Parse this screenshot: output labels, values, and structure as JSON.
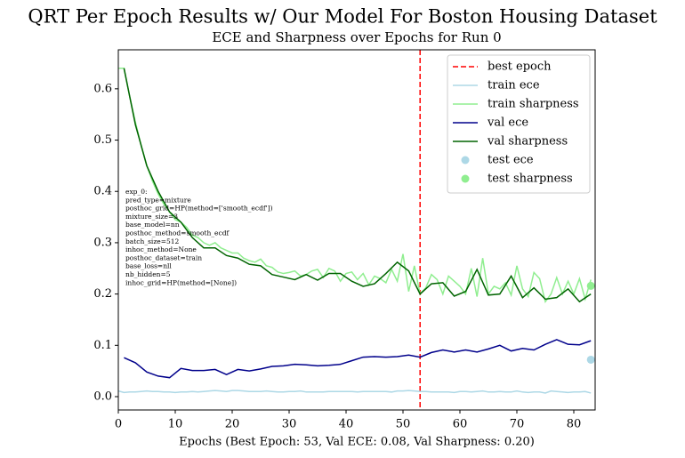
{
  "chart_data": {
    "type": "line",
    "suptitle": "QRT Per Epoch Results w/ Our Model For Boston Housing Dataset",
    "title": "ECE and Sharpness over Epochs for Run 0",
    "xlabel": "Epochs (Best Epoch: 53, Val ECE: 0.08, Val Sharpness: 0.20)",
    "xlim": [
      0,
      83.75
    ],
    "ylim": [
      -0.026,
      0.676
    ],
    "xticks": [
      0,
      10,
      20,
      30,
      40,
      50,
      60,
      70,
      80
    ],
    "yticks": [
      {
        "value": 0,
        "label": "0.0"
      },
      0.1,
      0.2,
      0.3,
      0.4,
      0.5,
      0.6
    ],
    "legend": "upper right",
    "vline": {
      "name": "best epoch",
      "color": "#ff0000",
      "x": 53
    },
    "series": [
      {
        "name": "train ece",
        "color": "#add8e6",
        "kind": "line",
        "x": [
          0,
          1,
          2,
          3,
          4,
          5,
          6,
          7,
          8,
          9,
          10,
          11,
          12,
          13,
          14,
          15,
          16,
          17,
          18,
          19,
          20,
          21,
          22,
          23,
          24,
          25,
          26,
          27,
          28,
          29,
          30,
          31,
          32,
          33,
          34,
          35,
          36,
          37,
          38,
          39,
          40,
          41,
          42,
          43,
          44,
          45,
          46,
          47,
          48,
          49,
          50,
          51,
          52,
          53,
          54,
          55,
          56,
          57,
          58,
          59,
          60,
          61,
          62,
          63,
          64,
          65,
          66,
          67,
          68,
          69,
          70,
          71,
          72,
          73,
          74,
          75,
          76,
          77,
          78,
          79,
          80,
          81,
          82,
          83
        ],
        "values": [
          0.011,
          0.008,
          0.009,
          0.009,
          0.01,
          0.011,
          0.01,
          0.01,
          0.009,
          0.009,
          0.008,
          0.009,
          0.009,
          0.01,
          0.009,
          0.01,
          0.011,
          0.012,
          0.011,
          0.01,
          0.012,
          0.012,
          0.011,
          0.01,
          0.01,
          0.01,
          0.011,
          0.01,
          0.009,
          0.009,
          0.01,
          0.01,
          0.011,
          0.009,
          0.009,
          0.009,
          0.009,
          0.01,
          0.01,
          0.01,
          0.01,
          0.01,
          0.009,
          0.01,
          0.01,
          0.01,
          0.01,
          0.01,
          0.009,
          0.011,
          0.011,
          0.012,
          0.011,
          0.01,
          0.01,
          0.009,
          0.009,
          0.009,
          0.009,
          0.008,
          0.01,
          0.01,
          0.009,
          0.01,
          0.011,
          0.009,
          0.009,
          0.01,
          0.009,
          0.009,
          0.011,
          0.009,
          0.008,
          0.009,
          0.009,
          0.007,
          0.011,
          0.01,
          0.009,
          0.008,
          0.009,
          0.009,
          0.01,
          0.007
        ]
      },
      {
        "name": "train sharpness",
        "color": "#90ee90",
        "kind": "line",
        "x": [
          0,
          1,
          2,
          3,
          4,
          5,
          6,
          7,
          8,
          9,
          10,
          11,
          12,
          13,
          14,
          15,
          16,
          17,
          18,
          19,
          20,
          21,
          22,
          23,
          24,
          25,
          26,
          27,
          28,
          29,
          30,
          31,
          32,
          33,
          34,
          35,
          36,
          37,
          38,
          39,
          40,
          41,
          42,
          43,
          44,
          45,
          46,
          47,
          48,
          49,
          50,
          51,
          52,
          53,
          54,
          55,
          56,
          57,
          58,
          59,
          60,
          61,
          62,
          63,
          64,
          65,
          66,
          67,
          68,
          69,
          70,
          71,
          72,
          73,
          74,
          75,
          76,
          77,
          78,
          79,
          80,
          81,
          82,
          83
        ],
        "values": [
          0.64,
          0.64,
          0.585,
          0.535,
          0.49,
          0.45,
          0.42,
          0.395,
          0.375,
          0.36,
          0.345,
          0.34,
          0.33,
          0.315,
          0.31,
          0.3,
          0.295,
          0.3,
          0.29,
          0.285,
          0.28,
          0.28,
          0.27,
          0.265,
          0.262,
          0.268,
          0.255,
          0.252,
          0.243,
          0.24,
          0.242,
          0.245,
          0.235,
          0.238,
          0.245,
          0.248,
          0.232,
          0.25,
          0.245,
          0.225,
          0.24,
          0.243,
          0.228,
          0.24,
          0.218,
          0.235,
          0.23,
          0.222,
          0.248,
          0.225,
          0.278,
          0.205,
          0.255,
          0.2,
          0.212,
          0.238,
          0.228,
          0.2,
          0.235,
          0.225,
          0.215,
          0.2,
          0.25,
          0.195,
          0.27,
          0.2,
          0.215,
          0.21,
          0.222,
          0.198,
          0.255,
          0.21,
          0.195,
          0.242,
          0.23,
          0.185,
          0.2,
          0.232,
          0.2,
          0.225,
          0.2,
          0.23,
          0.19,
          0.228
        ]
      },
      {
        "name": "val ece",
        "color": "#00008b",
        "kind": "line",
        "x": [
          1,
          3,
          5,
          7,
          9,
          11,
          13,
          15,
          17,
          19,
          21,
          23,
          25,
          27,
          29,
          31,
          33,
          35,
          37,
          39,
          41,
          43,
          45,
          47,
          49,
          51,
          53,
          55,
          57,
          59,
          61,
          63,
          65,
          67,
          69,
          71,
          73,
          75,
          77,
          79,
          81,
          83
        ],
        "values": [
          0.076,
          0.066,
          0.048,
          0.04,
          0.037,
          0.055,
          0.051,
          0.051,
          0.053,
          0.043,
          0.053,
          0.05,
          0.054,
          0.059,
          0.06,
          0.063,
          0.062,
          0.06,
          0.061,
          0.063,
          0.07,
          0.077,
          0.078,
          0.077,
          0.078,
          0.081,
          0.077,
          0.086,
          0.091,
          0.087,
          0.091,
          0.087,
          0.093,
          0.1,
          0.089,
          0.094,
          0.091,
          0.102,
          0.111,
          0.102,
          0.101,
          0.109
        ]
      },
      {
        "name": "val sharpness",
        "color": "#006400",
        "kind": "line",
        "x": [
          1,
          3,
          5,
          7,
          9,
          11,
          13,
          15,
          17,
          19,
          21,
          23,
          25,
          27,
          29,
          31,
          33,
          35,
          37,
          39,
          41,
          43,
          45,
          47,
          49,
          51,
          53,
          55,
          57,
          59,
          61,
          63,
          65,
          67,
          69,
          71,
          73,
          75,
          77,
          79,
          81,
          83
        ],
        "values": [
          0.64,
          0.53,
          0.45,
          0.4,
          0.36,
          0.34,
          0.31,
          0.29,
          0.29,
          0.275,
          0.27,
          0.258,
          0.255,
          0.238,
          0.233,
          0.228,
          0.238,
          0.227,
          0.24,
          0.24,
          0.225,
          0.215,
          0.22,
          0.24,
          0.262,
          0.245,
          0.2,
          0.22,
          0.222,
          0.196,
          0.205,
          0.248,
          0.198,
          0.2,
          0.235,
          0.193,
          0.212,
          0.19,
          0.193,
          0.21,
          0.185,
          0.2
        ]
      },
      {
        "name": "test ece",
        "color": "#add8e6",
        "kind": "scatter",
        "x": [
          83
        ],
        "values": [
          0.072
        ]
      },
      {
        "name": "test sharpness",
        "color": "#90ee90",
        "kind": "scatter",
        "x": [
          83
        ],
        "values": [
          0.216
        ]
      }
    ],
    "annotation": [
      "exp_0:",
      "pred_type=mixture",
      "posthoc_grid=HP(method=['smooth_ecdf'])",
      "mixture_size=3",
      "base_model=nn",
      "posthoc_method=smooth_ecdf",
      "batch_size=512",
      "inhoc_method=None",
      "posthoc_dataset=train",
      "base_loss=nll",
      "nb_hidden=5",
      "inhoc_grid=HP(method=[None])"
    ]
  }
}
